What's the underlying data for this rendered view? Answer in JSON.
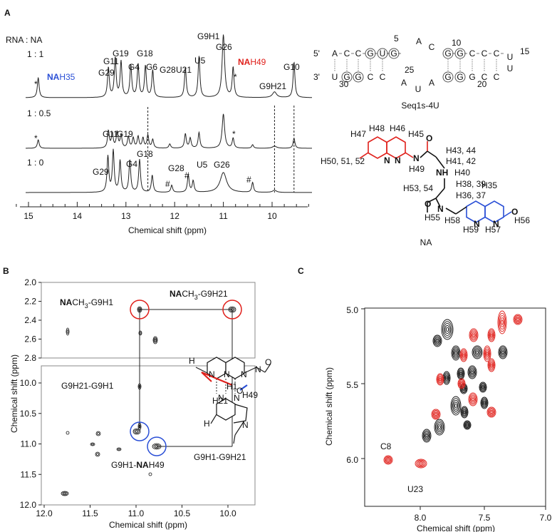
{
  "panel_a": {
    "label": "A",
    "ratio_title": "RNA : NA",
    "ratios": [
      "1 : 1",
      "1 : 0.5",
      "1 : 0"
    ],
    "top_peaks": [
      "G29",
      "G11",
      "G19",
      "G4",
      "G18",
      "G6",
      "G28",
      "U21",
      "U5",
      "G9H1",
      "G26",
      "G9H21",
      "G10"
    ],
    "na_h35": {
      "prefix": "NA",
      "suffix": "H35"
    },
    "na_h49": {
      "prefix": "NA",
      "suffix": "H49"
    },
    "bottom_peaks": [
      "G11",
      "G19",
      "G18",
      "G29",
      "G4",
      "G28",
      "U5",
      "G26"
    ],
    "stars": [
      "*",
      "*",
      "*",
      "*"
    ],
    "hashes": [
      "#",
      "#",
      "#"
    ],
    "x_ticks": [
      "15",
      "14",
      "13",
      "12",
      "11",
      "10"
    ],
    "x_label": "Chemical shift (ppm)",
    "sequence": {
      "five_prime": "5'",
      "three_prime": "3'",
      "top_left": [
        "A",
        "C",
        "C",
        "G",
        "U",
        "G"
      ],
      "top_loop": [
        "A",
        "C"
      ],
      "top_right": [
        "G",
        "G",
        "C",
        "C",
        "C"
      ],
      "hairpin": [
        "U",
        "U"
      ],
      "bottom_left": [
        "U",
        "G",
        "G",
        "C",
        "C"
      ],
      "bottom_loop": [
        "A",
        "U",
        "A"
      ],
      "bottom_right": [
        "G",
        "G",
        "G",
        "C",
        "C"
      ],
      "numbers": [
        "5",
        "10",
        "15",
        "20",
        "25",
        "30"
      ]
    },
    "sequence_name": "Seq1s-4U",
    "structure": {
      "name": "NA",
      "red_labels": [
        "H47",
        "H48",
        "H46",
        "H45",
        "H50, 51, 52",
        "H49"
      ],
      "black_labels": [
        "H43, 44",
        "H41, 42",
        "H40",
        "H38, 39",
        "H53, 54",
        "H36, 37",
        "H55",
        "H58"
      ],
      "blue_labels": [
        "H35",
        "H59",
        "H57",
        "H56"
      ],
      "red_atoms": [
        "N",
        "N",
        "N",
        "O"
      ],
      "black_atoms": [
        "NH",
        "N",
        "O"
      ],
      "blue_atoms": [
        "N",
        "N",
        "O"
      ]
    }
  },
  "panel_b": {
    "label": "B",
    "cross_1": {
      "prefix": "NA",
      "group": "CH",
      "sub": "3",
      "suffix": "-G9H1"
    },
    "cross_2": {
      "prefix": "NA",
      "group": "CH",
      "sub": "3",
      "suffix": "-G9H21"
    },
    "cross_3": "G9H21-G9H1",
    "cross_4": {
      "prefix": "G9H1-",
      "bold": "NA",
      "suffix": "H49"
    },
    "cross_5": "G9H1-G9H21",
    "y_ticks_top": [
      "2.0",
      "2.2",
      "2.4",
      "2.6",
      "2.8"
    ],
    "y_ticks_bottom": [
      "10.0",
      "10.5",
      "11.0",
      "11.5",
      "12.0"
    ],
    "x_ticks": [
      "12.0",
      "11.5",
      "11.0",
      "10.5",
      "10.0"
    ],
    "x_label": "Chemical shift (ppm)",
    "y_label": "Chemical shift (ppm)",
    "inset_labels": [
      "H21",
      "H1",
      "H49"
    ],
    "inset_atoms": [
      "H",
      "N",
      "N",
      "N",
      "N",
      "N",
      "N",
      "O",
      "O",
      "H",
      "N"
    ]
  },
  "panel_c": {
    "label": "C",
    "y_ticks": [
      "5.0",
      "5.5",
      "6.0"
    ],
    "x_ticks": [
      "8.0",
      "7.5",
      "7.0"
    ],
    "x_label": "Chemical shift (ppm)",
    "y_label": "Chemical shift (ppm)",
    "peak_labels": [
      "C8",
      "U23"
    ]
  }
}
